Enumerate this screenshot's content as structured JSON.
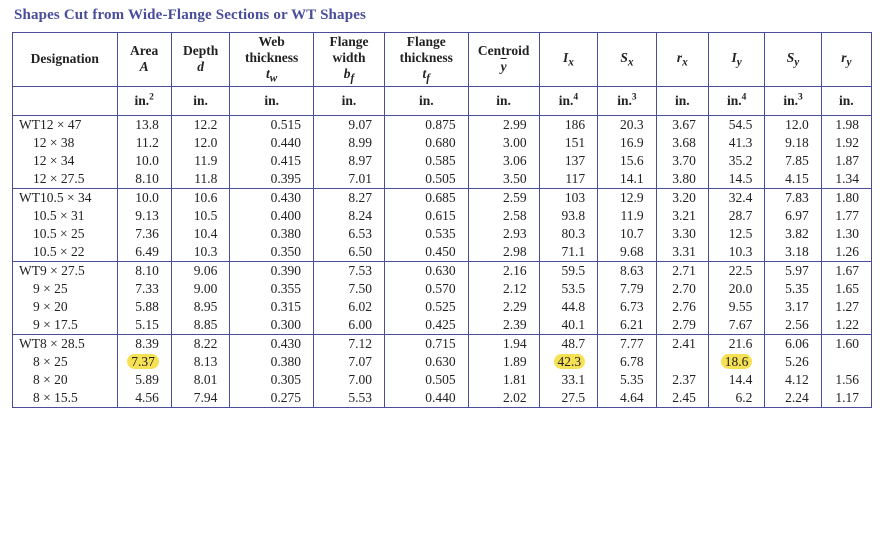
{
  "title": "Shapes Cut from Wide-Flange Sections or WT Shapes",
  "headers": [
    {
      "label": "Designation",
      "sym": "",
      "unit": ""
    },
    {
      "label": "Area",
      "sym": "A",
      "unit": "in.<sup>2</sup>"
    },
    {
      "label": "Depth",
      "sym": "d",
      "unit": "in."
    },
    {
      "label": "Web<br>thickness",
      "sym": "t<sub>w</sub>",
      "unit": "in."
    },
    {
      "label": "Flange<br>width",
      "sym": "b<sub>f</sub>",
      "unit": "in."
    },
    {
      "label": "Flange<br>thickness",
      "sym": "t<sub>f</sub>",
      "unit": "in."
    },
    {
      "label": "Centroid",
      "sym": "<span class='ovl'>y</span>",
      "unit": "in."
    },
    {
      "label": "",
      "sym": "I<sub>x</sub>",
      "unit": "in.<sup>4</sup>"
    },
    {
      "label": "",
      "sym": "S<sub>x</sub>",
      "unit": "in.<sup>3</sup>"
    },
    {
      "label": "",
      "sym": "r<sub>x</sub>",
      "unit": "in."
    },
    {
      "label": "",
      "sym": "I<sub>y</sub>",
      "unit": "in.<sup>4</sup>"
    },
    {
      "label": "",
      "sym": "S<sub>y</sub>",
      "unit": "in.<sup>3</sup>"
    },
    {
      "label": "",
      "sym": "r<sub>y</sub>",
      "unit": "in."
    }
  ],
  "groups": [
    [
      {
        "d": "WT12 × 47",
        "v": [
          "13.8",
          "12.2",
          "0.515",
          "9.07",
          "0.875",
          "2.99",
          "186",
          "20.3",
          "3.67",
          "54.5",
          "12.0",
          "1.98"
        ]
      },
      {
        "d": "12 × 38",
        "v": [
          "11.2",
          "12.0",
          "0.440",
          "8.99",
          "0.680",
          "3.00",
          "151",
          "16.9",
          "3.68",
          "41.3",
          "9.18",
          "1.92"
        ]
      },
      {
        "d": "12 × 34",
        "v": [
          "10.0",
          "11.9",
          "0.415",
          "8.97",
          "0.585",
          "3.06",
          "137",
          "15.6",
          "3.70",
          "35.2",
          "7.85",
          "1.87"
        ]
      },
      {
        "d": "12 × 27.5",
        "v": [
          "8.10",
          "11.8",
          "0.395",
          "7.01",
          "0.505",
          "3.50",
          "117",
          "14.1",
          "3.80",
          "14.5",
          "4.15",
          "1.34"
        ]
      }
    ],
    [
      {
        "d": "WT10.5 × 34",
        "v": [
          "10.0",
          "10.6",
          "0.430",
          "8.27",
          "0.685",
          "2.59",
          "103",
          "12.9",
          "3.20",
          "32.4",
          "7.83",
          "1.80"
        ]
      },
      {
        "d": "10.5 × 31",
        "v": [
          "9.13",
          "10.5",
          "0.400",
          "8.24",
          "0.615",
          "2.58",
          "93.8",
          "11.9",
          "3.21",
          "28.7",
          "6.97",
          "1.77"
        ]
      },
      {
        "d": "10.5 × 25",
        "v": [
          "7.36",
          "10.4",
          "0.380",
          "6.53",
          "0.535",
          "2.93",
          "80.3",
          "10.7",
          "3.30",
          "12.5",
          "3.82",
          "1.30"
        ]
      },
      {
        "d": "10.5 × 22",
        "v": [
          "6.49",
          "10.3",
          "0.350",
          "6.50",
          "0.450",
          "2.98",
          "71.1",
          "9.68",
          "3.31",
          "10.3",
          "3.18",
          "1.26"
        ]
      }
    ],
    [
      {
        "d": "WT9 × 27.5",
        "v": [
          "8.10",
          "9.06",
          "0.390",
          "7.53",
          "0.630",
          "2.16",
          "59.5",
          "8.63",
          "2.71",
          "22.5",
          "5.97",
          "1.67"
        ]
      },
      {
        "d": "9 × 25",
        "v": [
          "7.33",
          "9.00",
          "0.355",
          "7.50",
          "0.570",
          "2.12",
          "53.5",
          "7.79",
          "2.70",
          "20.0",
          "5.35",
          "1.65"
        ]
      },
      {
        "d": "9 × 20",
        "v": [
          "5.88",
          "8.95",
          "0.315",
          "6.02",
          "0.525",
          "2.29",
          "44.8",
          "6.73",
          "2.76",
          "9.55",
          "3.17",
          "1.27"
        ]
      },
      {
        "d": "9 × 17.5",
        "v": [
          "5.15",
          "8.85",
          "0.300",
          "6.00",
          "0.425",
          "2.39",
          "40.1",
          "6.21",
          "2.79",
          "7.67",
          "2.56",
          "1.22"
        ]
      }
    ],
    [
      {
        "d": "WT8 × 28.5",
        "v": [
          "8.39",
          "8.22",
          "0.430",
          "7.12",
          "0.715",
          "1.94",
          "48.7",
          "7.77",
          "2.41",
          "21.6",
          "6.06",
          "1.60"
        ]
      },
      {
        "d": "8 × 25",
        "v": [
          "7.37",
          "8.13",
          "0.380",
          "7.07",
          "0.630",
          "1.89",
          "42.3",
          "6.78",
          "",
          "18.6",
          "5.26",
          ""
        ],
        "hl": [
          0,
          6,
          9
        ]
      },
      {
        "d": "8 × 20",
        "v": [
          "5.89",
          "8.01",
          "0.305",
          "7.00",
          "0.505",
          "1.81",
          "33.1",
          "5.35",
          "2.37",
          "14.4",
          "4.12",
          "1.56"
        ]
      },
      {
        "d": "8 × 15.5",
        "v": [
          "4.56",
          "7.94",
          "0.275",
          "5.53",
          "0.440",
          "2.02",
          "27.5",
          "4.64",
          "2.45",
          "6.2",
          "2.24",
          "1.17"
        ]
      }
    ]
  ]
}
